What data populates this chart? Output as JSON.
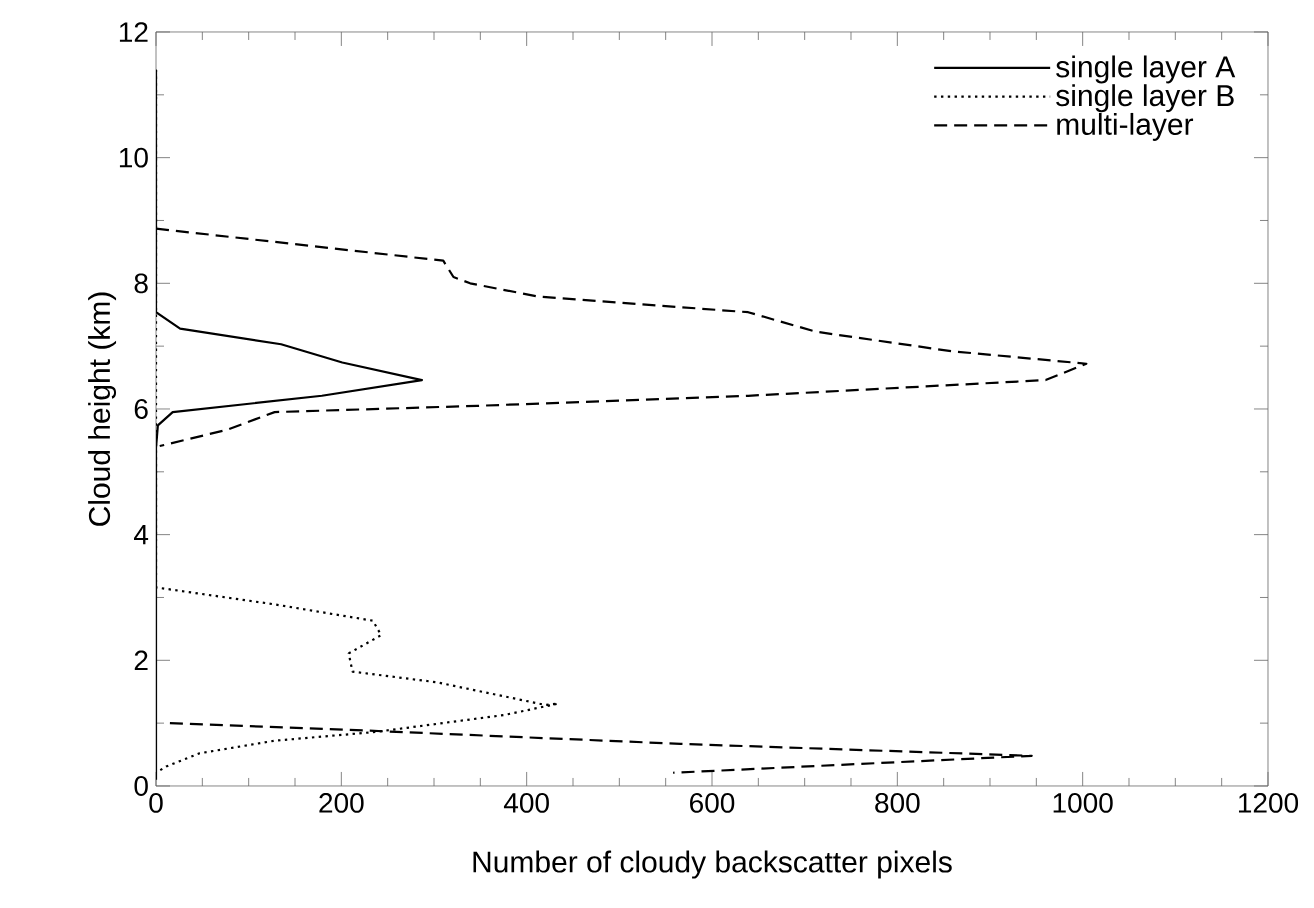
{
  "chart_data": {
    "type": "line",
    "xlabel": "Number of cloudy backscatter pixels",
    "ylabel": "Cloud height (km)",
    "xlim": [
      0,
      1200
    ],
    "ylim": [
      0,
      12
    ],
    "xticks": [
      0,
      200,
      400,
      600,
      800,
      1000,
      1200
    ],
    "yticks": [
      0,
      2,
      4,
      6,
      8,
      10,
      12
    ],
    "legend": "top right",
    "marker": "none",
    "series": [
      {
        "name": "single layer A",
        "color": "#000000",
        "line_style": "solid",
        "x": [
          0,
          0,
          26,
          135,
          201,
          287,
          179,
          18,
          2,
          0,
          0
        ],
        "values": [
          11.4,
          7.54,
          7.28,
          7.03,
          6.74,
          6.46,
          6.21,
          5.95,
          5.74,
          5.38,
          0.1
        ]
      },
      {
        "name": "single layer B",
        "color": "#000000",
        "line_style": "dotted",
        "x": [
          0,
          0,
          128,
          234,
          243,
          208,
          212,
          303,
          420,
          434,
          376,
          237,
          128,
          47,
          11,
          0
        ],
        "values": [
          11.4,
          3.16,
          2.89,
          2.63,
          2.4,
          2.11,
          1.82,
          1.65,
          1.29,
          1.31,
          1.13,
          0.86,
          0.72,
          0.52,
          0.31,
          0.21
        ]
      },
      {
        "name": "multi-layer",
        "color": "#000000",
        "line_style": "dashed",
        "x": [
          0,
          310,
          321,
          339,
          412,
          639,
          712,
          858,
          1004,
          960,
          639,
          347,
          128,
          77,
          4,
          null,
          15,
          230,
          566,
          945,
          558
        ],
        "values": [
          8.87,
          8.36,
          8.1,
          8.0,
          7.79,
          7.54,
          7.23,
          6.92,
          6.72,
          6.46,
          6.21,
          6.05,
          5.95,
          5.67,
          5.41,
          null,
          1.0,
          0.88,
          0.67,
          0.48,
          0.21
        ]
      }
    ]
  }
}
